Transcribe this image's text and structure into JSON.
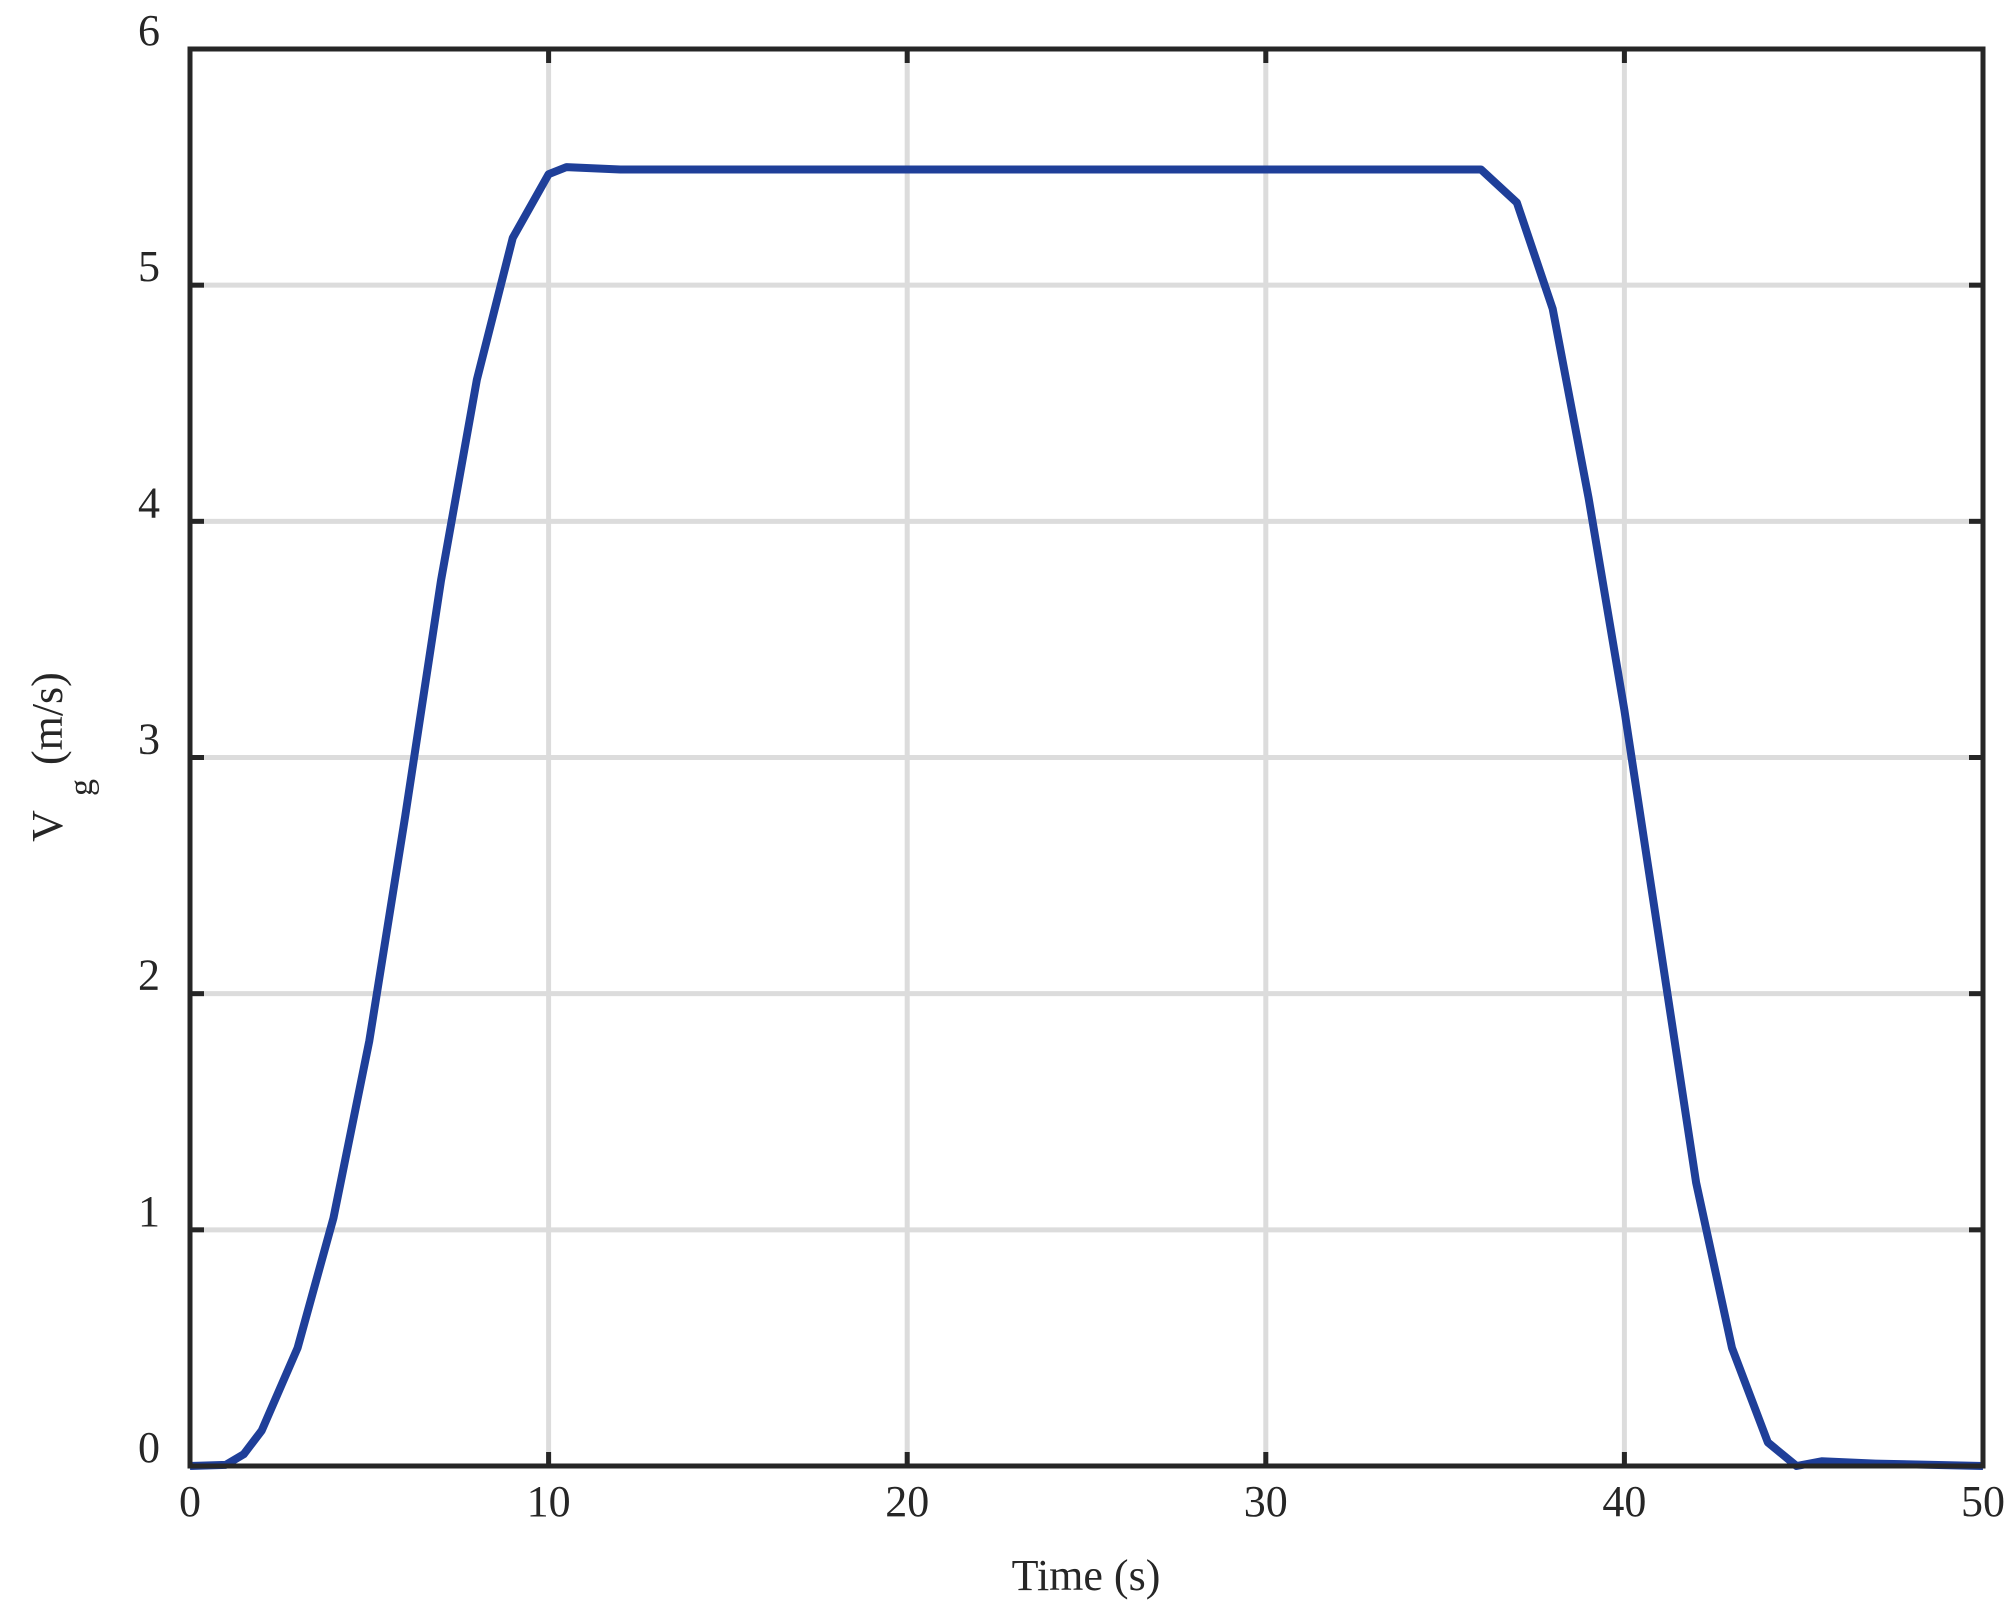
{
  "chart_data": {
    "type": "line",
    "xlabel": "Time (s)",
    "ylabel": [
      "V",
      "g",
      "(m/s)"
    ],
    "x": [
      0,
      1,
      1.5,
      2,
      3,
      4,
      5,
      6,
      7,
      8,
      9,
      10,
      10.5,
      12,
      36,
      37,
      38,
      39,
      40,
      41,
      42,
      43,
      44,
      44.8,
      45.5,
      47,
      50
    ],
    "series": [
      {
        "name": "Vg",
        "color": "#1f3f99",
        "values": [
          0,
          0.005,
          0.05,
          0.15,
          0.5,
          1.05,
          1.8,
          2.75,
          3.75,
          4.6,
          5.2,
          5.47,
          5.5,
          5.49,
          5.49,
          5.35,
          4.9,
          4.1,
          3.2,
          2.2,
          1.2,
          0.5,
          0.1,
          0,
          0.02,
          0.01,
          0
        ]
      }
    ],
    "xlim": [
      0,
      50
    ],
    "xticks": [
      0,
      10,
      20,
      30,
      40,
      50
    ],
    "ylim": [
      0,
      6
    ],
    "yticks": [
      0,
      1,
      2,
      3,
      4,
      5,
      6
    ],
    "grid": true
  }
}
